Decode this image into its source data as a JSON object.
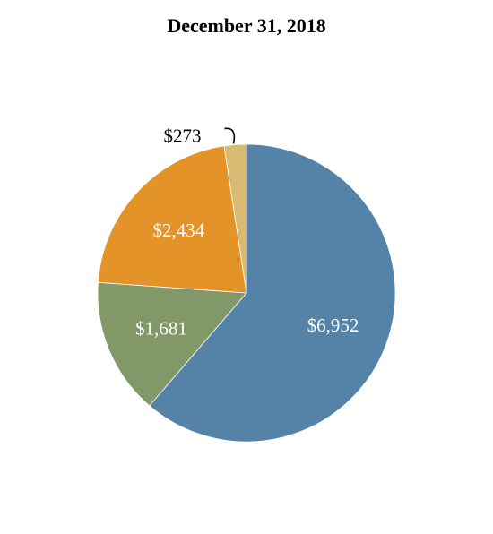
{
  "chart_data": {
    "type": "pie",
    "title": "December 31, 2018",
    "categories": [
      "",
      "",
      "",
      ""
    ],
    "values": [
      6952,
      1681,
      2434,
      273
    ],
    "labels": [
      "$6,952",
      "$1,681",
      "$2,434",
      "$273"
    ],
    "colors": [
      "#5582a7",
      "#829868",
      "#e39327",
      "#d8bb72"
    ],
    "label_colors": [
      "#ffffff",
      "#ffffff",
      "#ffffff",
      "#000000"
    ],
    "start_angle_deg": 0,
    "direction": "clockwise",
    "legend": "none"
  }
}
